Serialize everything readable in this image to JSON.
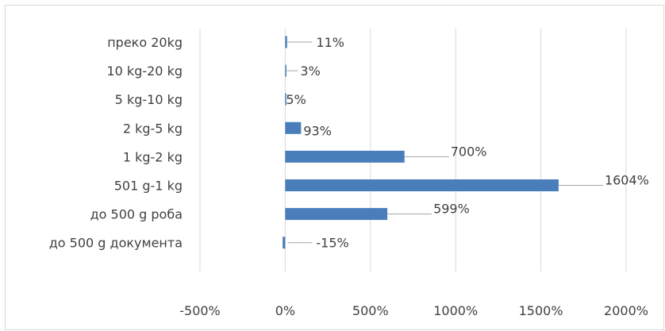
{
  "chart_data": {
    "type": "bar",
    "orientation": "horizontal",
    "categories": [
      "до 500 g документа",
      "до 500 g роба",
      "501 g-1 kg",
      "1 kg-2 kg",
      "2 kg-5 kg",
      "5 kg-10 kg",
      "10 kg-20 kg",
      "преко 20kg"
    ],
    "values": [
      -15,
      599,
      1604,
      700,
      93,
      5,
      3,
      11
    ],
    "data_labels": [
      "-15%",
      "599%",
      "1604%",
      "700%",
      "93%",
      "5%",
      "3%",
      "11%"
    ],
    "unit": "%",
    "xlim": [
      -500,
      2000
    ],
    "x_ticks": [
      -500,
      0,
      500,
      1000,
      1500,
      2000
    ],
    "x_tick_labels": [
      "-500%",
      "0%",
      "500%",
      "1000%",
      "1500%",
      "2000%"
    ],
    "grid": "vertical",
    "legend": "none",
    "title": "",
    "xlabel": "",
    "ylabel": "",
    "colors": {
      "bar": "#4a7ebb",
      "grid": "#d9d9d9",
      "text": "#404040",
      "leader": "#a6a6a6"
    }
  }
}
